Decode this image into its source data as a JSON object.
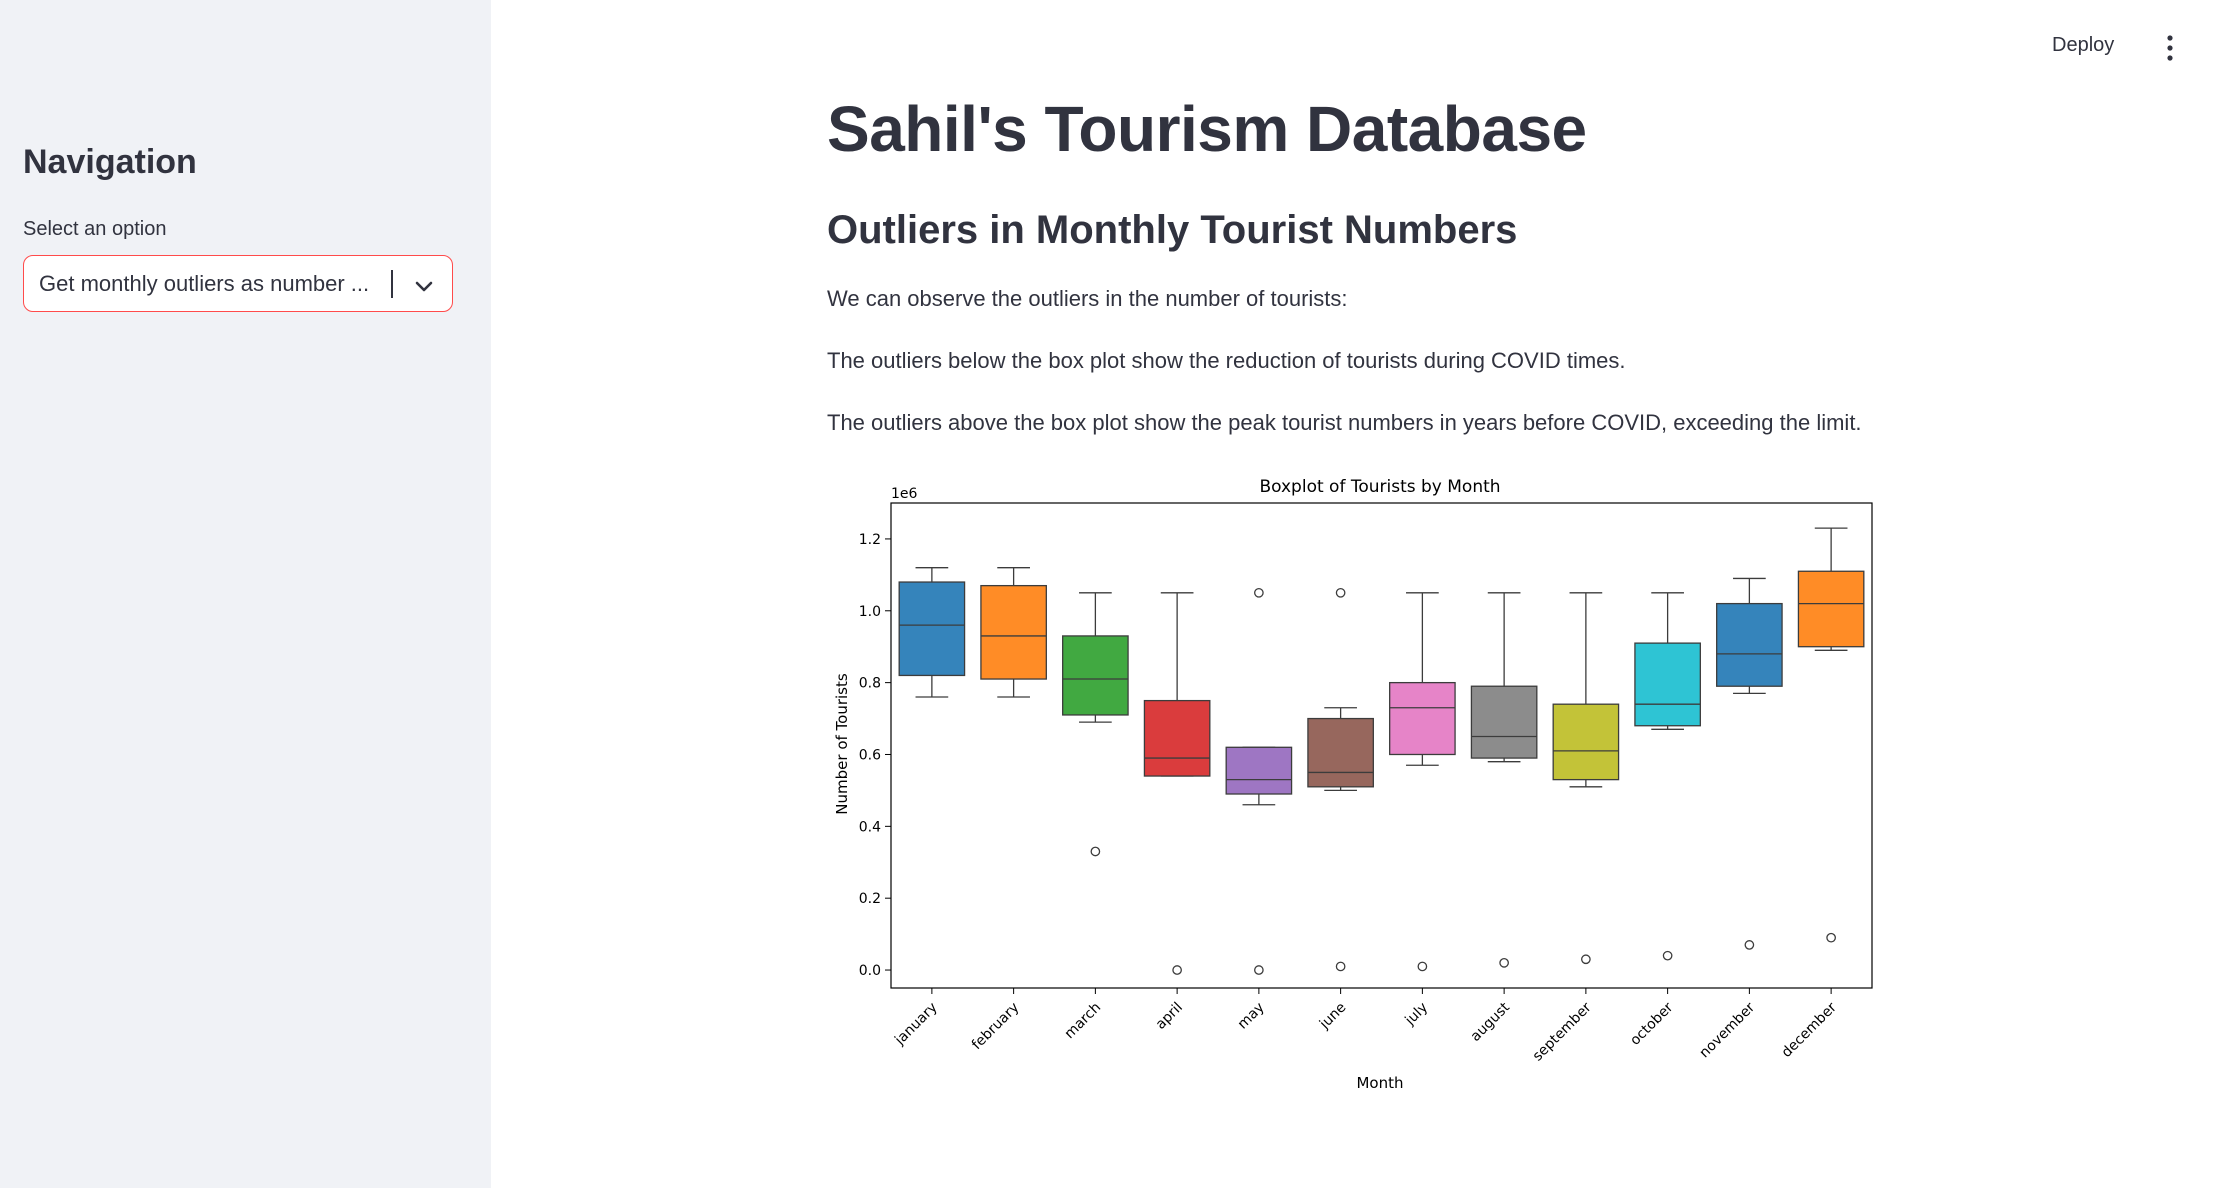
{
  "sidebar": {
    "title": "Navigation",
    "select_label": "Select an option",
    "select_value": "Get monthly outliers as number ..."
  },
  "header": {
    "deploy_label": "Deploy",
    "menu_icon": "vertical-dots-icon"
  },
  "main": {
    "title": "Sahil's Tourism Database",
    "subtitle": "Outliers in Monthly Tourist Numbers",
    "paragraphs": [
      "We can observe the outliers in the number of tourists:",
      "The outliers below the box plot show the reduction of tourists during COVID times.",
      "The outliers above the box plot show the peak tourist numbers in years before COVID, exceeding the limit."
    ]
  },
  "chart_data": {
    "type": "boxplot",
    "title": "Boxplot of Tourists by Month",
    "xlabel": "Month",
    "ylabel": "Number of Tourists",
    "y_offset_label": "1e6",
    "ylim": [
      -0.05,
      1.3
    ],
    "yticks": [
      "0.0",
      "0.2",
      "0.4",
      "0.6",
      "0.8",
      "1.0",
      "1.2"
    ],
    "ytick_values": [
      0.0,
      0.2,
      0.4,
      0.6,
      0.8,
      1.0,
      1.2
    ],
    "categories": [
      "january",
      "february",
      "march",
      "april",
      "may",
      "june",
      "july",
      "august",
      "september",
      "october",
      "november",
      "december"
    ],
    "boxes": [
      {
        "month": "january",
        "color": "#1f77b4",
        "whisker_low": 0.76,
        "q1": 0.82,
        "median": 0.96,
        "q3": 1.08,
        "whisker_high": 1.12,
        "outliers": []
      },
      {
        "month": "february",
        "color": "#ff7f0e",
        "whisker_low": 0.76,
        "q1": 0.81,
        "median": 0.93,
        "q3": 1.07,
        "whisker_high": 1.12,
        "outliers": []
      },
      {
        "month": "march",
        "color": "#2ca02c",
        "whisker_low": 0.69,
        "q1": 0.71,
        "median": 0.81,
        "q3": 0.93,
        "whisker_high": 1.05,
        "outliers": [
          0.33
        ]
      },
      {
        "month": "april",
        "color": "#d62728",
        "whisker_low": 0.54,
        "q1": 0.54,
        "median": 0.59,
        "q3": 0.75,
        "whisker_high": 1.05,
        "outliers": [
          0.0
        ]
      },
      {
        "month": "may",
        "color": "#9467bd",
        "whisker_low": 0.46,
        "q1": 0.49,
        "median": 0.53,
        "q3": 0.62,
        "whisker_high": 0.62,
        "outliers": [
          1.05,
          0.0
        ]
      },
      {
        "month": "june",
        "color": "#8c564b",
        "whisker_low": 0.5,
        "q1": 0.51,
        "median": 0.55,
        "q3": 0.7,
        "whisker_high": 0.73,
        "outliers": [
          1.05,
          0.01
        ]
      },
      {
        "month": "july",
        "color": "#e377c2",
        "whisker_low": 0.57,
        "q1": 0.6,
        "median": 0.73,
        "q3": 0.8,
        "whisker_high": 1.05,
        "outliers": [
          0.01
        ]
      },
      {
        "month": "august",
        "color": "#7f7f7f",
        "whisker_low": 0.58,
        "q1": 0.59,
        "median": 0.65,
        "q3": 0.79,
        "whisker_high": 1.05,
        "outliers": [
          0.02
        ]
      },
      {
        "month": "september",
        "color": "#bcbd22",
        "whisker_low": 0.51,
        "q1": 0.53,
        "median": 0.61,
        "q3": 0.74,
        "whisker_high": 1.05,
        "outliers": [
          0.03
        ]
      },
      {
        "month": "october",
        "color": "#17becf",
        "whisker_low": 0.67,
        "q1": 0.68,
        "median": 0.74,
        "q3": 0.91,
        "whisker_high": 1.05,
        "outliers": [
          0.04
        ]
      },
      {
        "month": "november",
        "color": "#1f77b4",
        "whisker_low": 0.77,
        "q1": 0.79,
        "median": 0.88,
        "q3": 1.02,
        "whisker_high": 1.09,
        "outliers": [
          0.07
        ]
      },
      {
        "month": "december",
        "color": "#ff7f0e",
        "whisker_low": 0.89,
        "q1": 0.9,
        "median": 1.02,
        "q3": 1.11,
        "whisker_high": 1.23,
        "outliers": [
          0.09
        ]
      }
    ]
  }
}
